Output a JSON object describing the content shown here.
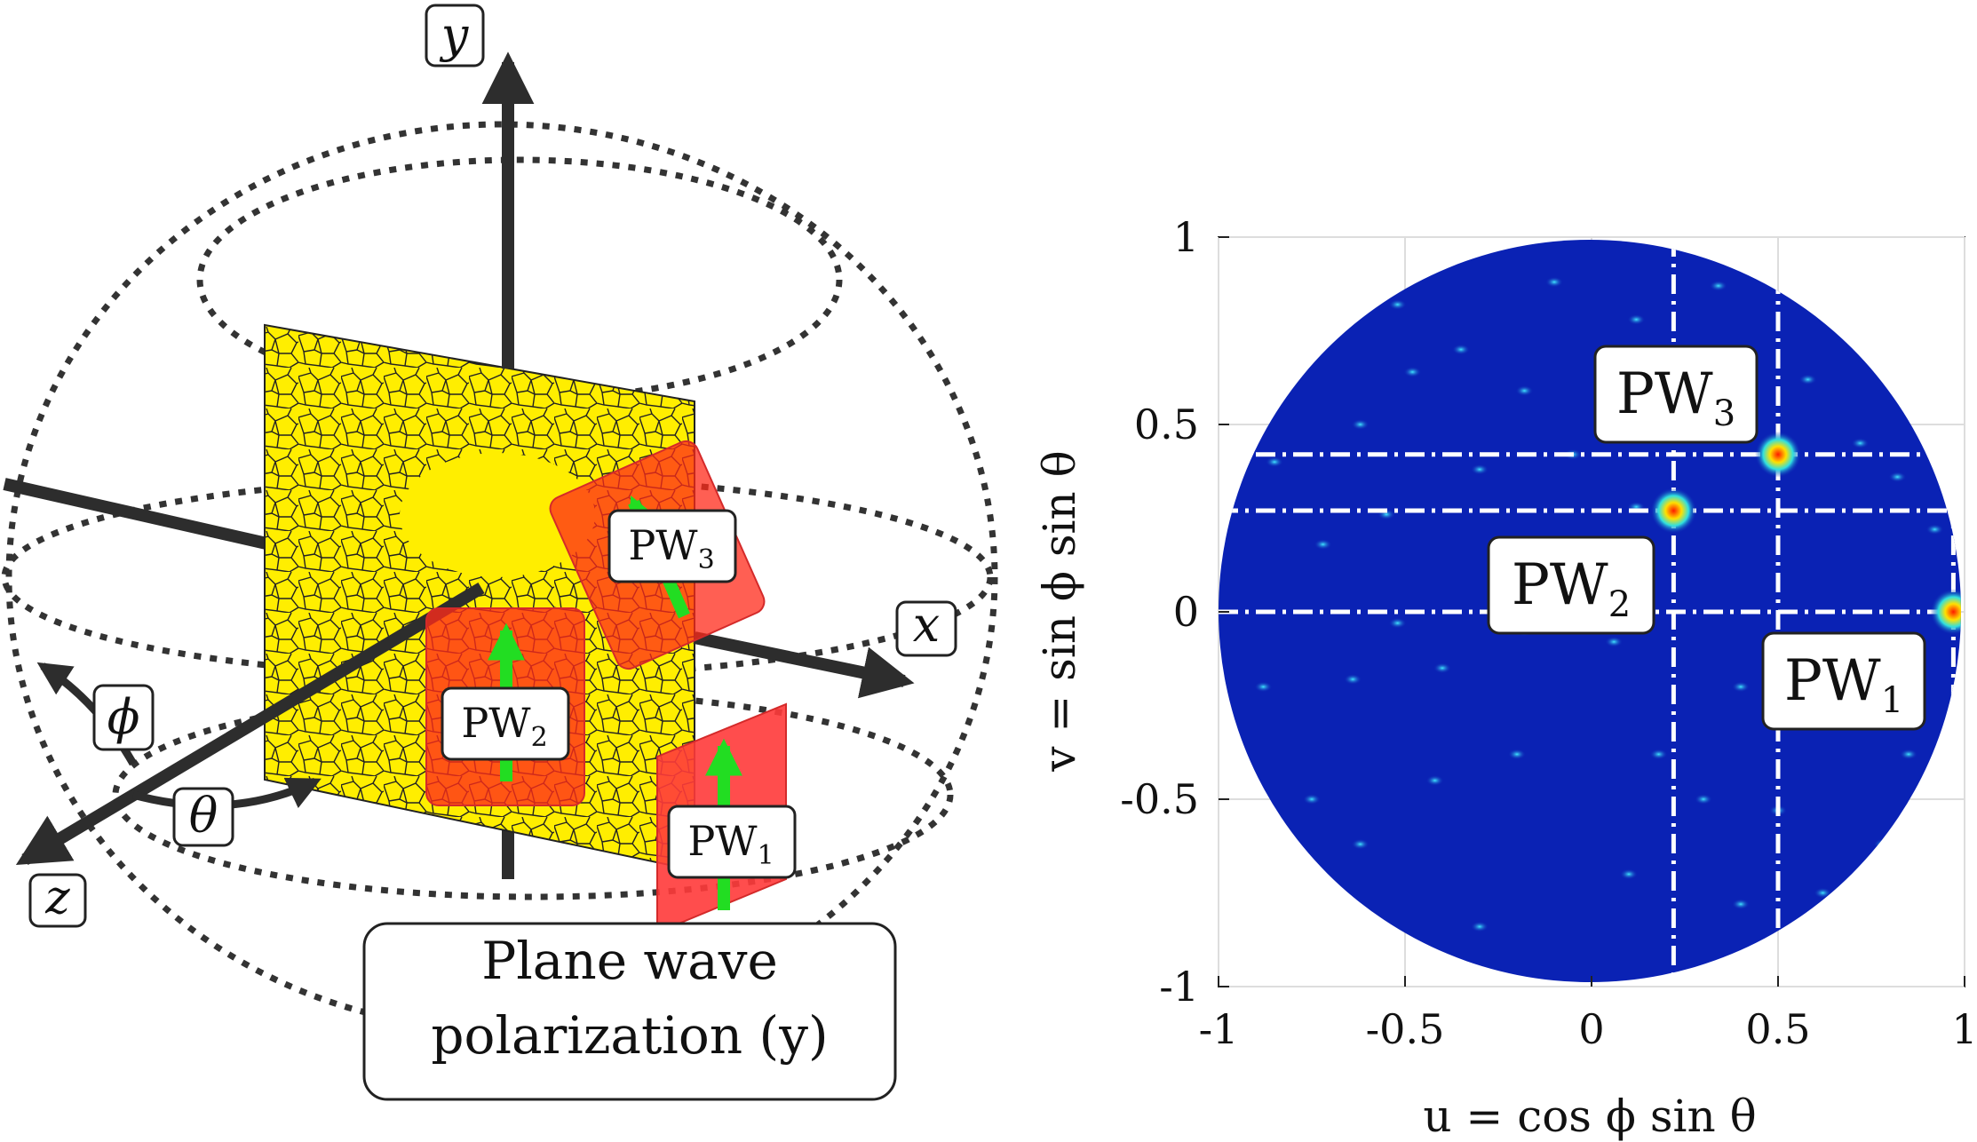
{
  "diagram": {
    "axis_y": "y",
    "axis_x": "x",
    "axis_z": "z",
    "angle_phi": "ϕ",
    "angle_theta": "θ",
    "pw1": {
      "base": "PW",
      "sub": "1"
    },
    "pw2": {
      "base": "PW",
      "sub": "2"
    },
    "pw3": {
      "base": "PW",
      "sub": "3"
    },
    "caption_line1": "Plane wave",
    "caption_line2": "polarization (y)"
  },
  "chart_data": {
    "type": "heatmap",
    "xlabel": "u = cos ϕ sin θ",
    "ylabel": "v = sin ϕ sin θ",
    "xlim": [
      -1,
      1
    ],
    "ylim": [
      -1,
      1
    ],
    "x_ticks": [
      "-1",
      "-0.5",
      "0",
      "0.5",
      "1"
    ],
    "y_ticks": [
      "1",
      "0.5",
      "0",
      "-0.5",
      "-1"
    ],
    "grid": true,
    "colors": {
      "background": "#0a22b4",
      "hot": "#ffe000",
      "peak": "#ff2000"
    },
    "reference_lines": {
      "u": [
        0.22,
        0.5,
        0.97
      ],
      "v": [
        0,
        0.27,
        0.42
      ]
    },
    "peaks": [
      {
        "label": {
          "base": "PW",
          "sub": "1"
        },
        "u": 0.97,
        "v": 0.0
      },
      {
        "label": {
          "base": "PW",
          "sub": "2"
        },
        "u": 0.22,
        "v": 0.27
      },
      {
        "label": {
          "base": "PW",
          "sub": "3"
        },
        "u": 0.5,
        "v": 0.42
      }
    ],
    "speckles": [
      [
        -0.52,
        0.82
      ],
      [
        0.12,
        0.78
      ],
      [
        -0.48,
        0.64
      ],
      [
        -0.18,
        0.59
      ],
      [
        0.34,
        0.87
      ],
      [
        -0.1,
        0.88
      ],
      [
        0.58,
        0.62
      ],
      [
        0.72,
        0.45
      ],
      [
        0.82,
        0.36
      ],
      [
        0.88,
        0.55
      ],
      [
        -0.62,
        0.5
      ],
      [
        -0.85,
        0.4
      ],
      [
        -0.72,
        0.18
      ],
      [
        -0.55,
        0.26
      ],
      [
        -0.3,
        0.38
      ],
      [
        0.1,
        0.12
      ],
      [
        0.12,
        0.28
      ],
      [
        -0.52,
        -0.03
      ],
      [
        -0.64,
        -0.18
      ],
      [
        -0.4,
        -0.15
      ],
      [
        -0.18,
        -0.05
      ],
      [
        0.06,
        -0.08
      ],
      [
        0.4,
        -0.2
      ],
      [
        0.62,
        -0.3
      ],
      [
        0.5,
        -0.53
      ],
      [
        0.85,
        -0.38
      ],
      [
        0.78,
        -0.62
      ],
      [
        0.62,
        -0.75
      ],
      [
        0.4,
        -0.78
      ],
      [
        0.1,
        -0.7
      ],
      [
        -0.2,
        -0.38
      ],
      [
        -0.42,
        -0.45
      ],
      [
        -0.62,
        -0.62
      ],
      [
        -0.3,
        -0.84
      ],
      [
        -0.48,
        -0.9
      ],
      [
        -0.75,
        -0.5
      ],
      [
        -0.88,
        -0.2
      ],
      [
        0.3,
        -0.5
      ],
      [
        0.18,
        -0.38
      ],
      [
        0.72,
        -0.12
      ],
      [
        0.92,
        0.22
      ],
      [
        -0.05,
        0.42
      ],
      [
        0.3,
        0.6
      ],
      [
        -0.35,
        0.7
      ],
      [
        0.7,
        0.78
      ]
    ]
  }
}
